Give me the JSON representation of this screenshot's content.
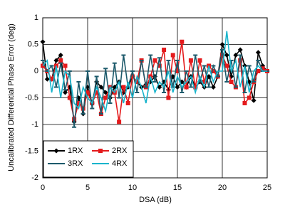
{
  "chart_data": {
    "type": "line",
    "xlabel": "DSA (dB)",
    "ylabel": "Uncalibrated Differential Phase Error (deg)",
    "x": [
      0,
      0.5,
      1,
      1.5,
      2,
      2.5,
      3,
      3.5,
      4,
      4.5,
      5,
      5.5,
      6,
      6.5,
      7,
      7.5,
      8,
      8.5,
      9,
      9.5,
      10,
      10.5,
      11,
      11.5,
      12,
      12.5,
      13,
      13.5,
      14,
      14.5,
      15,
      15.5,
      16,
      16.5,
      17,
      17.5,
      18,
      18.5,
      19,
      19.5,
      20,
      20.5,
      21,
      21.5,
      22,
      22.5,
      23,
      23.5,
      24,
      24.5,
      25
    ],
    "series": [
      {
        "name": "1RX",
        "color": "#000000",
        "marker": "diamond",
        "values": [
          0.55,
          -0.15,
          -0.15,
          0.2,
          0.3,
          -0.4,
          -0.3,
          -0.95,
          -0.5,
          -0.8,
          -0.3,
          -0.6,
          -0.2,
          -0.3,
          -0.4,
          -0.5,
          -0.3,
          -0.2,
          -0.4,
          -0.3,
          -0.1,
          -0.2,
          -0.3,
          -0.25,
          -0.2,
          -0.1,
          -0.3,
          -0.2,
          -0.35,
          -0.1,
          -0.3,
          -0.2,
          -0.3,
          -0.1,
          -0.3,
          -0.2,
          -0.3,
          -0.1,
          -0.3,
          -0.1,
          0.5,
          0.3,
          -0.1,
          0.3,
          0.4,
          0.1,
          -0.2,
          -0.55,
          0.35,
          0.1,
          0.0
        ]
      },
      {
        "name": "2RX",
        "color": "#e41a1c",
        "marker": "square",
        "values": [
          0.1,
          0.0,
          -0.15,
          0.1,
          0.2,
          0.1,
          -0.5,
          -0.9,
          -0.6,
          -0.7,
          -0.4,
          -0.6,
          -0.4,
          -0.8,
          -0.5,
          -0.3,
          -0.4,
          -0.95,
          -0.3,
          -0.6,
          -0.1,
          -0.2,
          0.2,
          -0.3,
          -0.1,
          0.2,
          0.1,
          0.4,
          -0.5,
          0.3,
          0.0,
          0.55,
          -0.3,
          0.2,
          -0.3,
          0.2,
          -0.2,
          0.1,
          0.0,
          -0.1,
          0.3,
          0.1,
          -0.2,
          -0.3,
          0.2,
          -0.6,
          -0.5,
          -0.2,
          0.0,
          0.05,
          0.0
        ]
      },
      {
        "name": "3RX",
        "color": "#1d5a6b",
        "marker": "dash",
        "values": [
          0.2,
          0.0,
          0.1,
          -0.3,
          0.15,
          -0.35,
          0.0,
          -1.05,
          -0.2,
          -0.8,
          0.0,
          -0.7,
          -0.1,
          -0.8,
          0.05,
          -0.6,
          0.15,
          -0.5,
          0.3,
          -0.3,
          0.0,
          -0.4,
          0.2,
          -0.3,
          0.3,
          -0.2,
          0.25,
          -0.4,
          0.2,
          -0.3,
          0.2,
          -0.4,
          0.0,
          -0.3,
          0.3,
          -0.2,
          0.1,
          -0.3,
          0.1,
          -0.1,
          0.4,
          -0.2,
          0.2,
          -0.3,
          0.3,
          -0.4,
          0.1,
          -0.2,
          0.2,
          0.0,
          0.0
        ]
      },
      {
        "name": "4RX",
        "color": "#17b4cc",
        "marker": "none",
        "values": [
          0.1,
          0.2,
          -0.4,
          0.1,
          -0.5,
          0.0,
          -0.1,
          -0.6,
          -0.7,
          -0.3,
          -0.5,
          -0.6,
          -0.3,
          -0.5,
          -0.75,
          -0.3,
          -0.4,
          -0.2,
          -0.6,
          -0.2,
          -0.5,
          -0.1,
          -0.3,
          -0.6,
          -0.1,
          -0.4,
          -0.2,
          -0.3,
          0.0,
          -0.4,
          -0.1,
          -0.3,
          -0.2,
          -0.1,
          -0.4,
          -0.1,
          -0.3,
          0.1,
          -0.2,
          0.0,
          0.0,
          0.75,
          0.0,
          0.2,
          -0.3,
          0.1,
          -0.4,
          0.0,
          0.1,
          0.0,
          0.0
        ]
      }
    ],
    "xlim": [
      0,
      25
    ],
    "xticks": [
      0,
      5,
      10,
      15,
      20,
      25
    ],
    "ylim": [
      -2,
      1
    ],
    "yticks": [
      1,
      0.5,
      0,
      -0.5,
      -1,
      -1.5,
      -2
    ],
    "grid": true,
    "legend": "lower left"
  }
}
